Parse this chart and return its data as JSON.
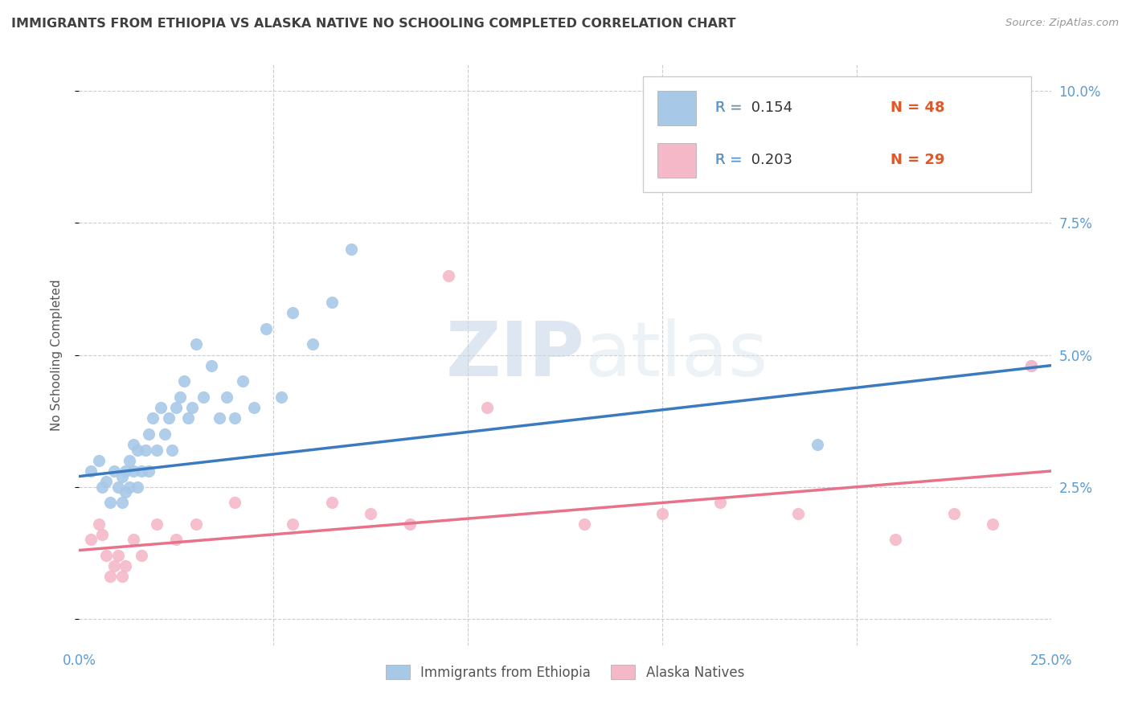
{
  "title": "IMMIGRANTS FROM ETHIOPIA VS ALASKA NATIVE NO SCHOOLING COMPLETED CORRELATION CHART",
  "source": "Source: ZipAtlas.com",
  "ylabel": "No Schooling Completed",
  "xlim": [
    0.0,
    0.25
  ],
  "ylim": [
    -0.005,
    0.105
  ],
  "xticks": [
    0.0,
    0.05,
    0.1,
    0.15,
    0.2,
    0.25
  ],
  "xticklabels": [
    "0.0%",
    "",
    "",
    "",
    "",
    "25.0%"
  ],
  "yticks": [
    0.0,
    0.025,
    0.05,
    0.075,
    0.1
  ],
  "yticklabels": [
    "",
    "2.5%",
    "5.0%",
    "7.5%",
    "10.0%"
  ],
  "blue_color": "#a8c8e8",
  "pink_color": "#f4b8c8",
  "blue_line_color": "#3a7abf",
  "pink_line_color": "#e8728a",
  "legend_R1": "R =  0.154",
  "legend_N1": "N = 48",
  "legend_R2": "R =  0.203",
  "legend_N2": "N = 29",
  "legend_label1": "Immigrants from Ethiopia",
  "legend_label2": "Alaska Natives",
  "watermark_zip": "ZIP",
  "watermark_atlas": "atlas",
  "blue_x": [
    0.003,
    0.005,
    0.006,
    0.007,
    0.008,
    0.009,
    0.01,
    0.011,
    0.011,
    0.012,
    0.012,
    0.013,
    0.013,
    0.014,
    0.014,
    0.015,
    0.015,
    0.016,
    0.017,
    0.018,
    0.018,
    0.019,
    0.02,
    0.021,
    0.022,
    0.023,
    0.024,
    0.025,
    0.026,
    0.027,
    0.028,
    0.029,
    0.03,
    0.032,
    0.034,
    0.036,
    0.038,
    0.04,
    0.042,
    0.045,
    0.048,
    0.052,
    0.055,
    0.06,
    0.065,
    0.07,
    0.19,
    0.245
  ],
  "blue_y": [
    0.028,
    0.03,
    0.025,
    0.026,
    0.022,
    0.028,
    0.025,
    0.022,
    0.027,
    0.024,
    0.028,
    0.025,
    0.03,
    0.028,
    0.033,
    0.025,
    0.032,
    0.028,
    0.032,
    0.028,
    0.035,
    0.038,
    0.032,
    0.04,
    0.035,
    0.038,
    0.032,
    0.04,
    0.042,
    0.045,
    0.038,
    0.04,
    0.052,
    0.042,
    0.048,
    0.038,
    0.042,
    0.038,
    0.045,
    0.04,
    0.055,
    0.042,
    0.058,
    0.052,
    0.06,
    0.07,
    0.033,
    0.048
  ],
  "pink_x": [
    0.003,
    0.005,
    0.006,
    0.007,
    0.008,
    0.009,
    0.01,
    0.011,
    0.012,
    0.014,
    0.016,
    0.02,
    0.025,
    0.03,
    0.04,
    0.055,
    0.065,
    0.075,
    0.085,
    0.095,
    0.105,
    0.13,
    0.15,
    0.165,
    0.185,
    0.21,
    0.225,
    0.235,
    0.245
  ],
  "pink_y": [
    0.015,
    0.018,
    0.016,
    0.012,
    0.008,
    0.01,
    0.012,
    0.008,
    0.01,
    0.015,
    0.012,
    0.018,
    0.015,
    0.018,
    0.022,
    0.018,
    0.022,
    0.02,
    0.018,
    0.065,
    0.04,
    0.018,
    0.02,
    0.022,
    0.02,
    0.015,
    0.02,
    0.018,
    0.048
  ],
  "blue_trend_x": [
    0.0,
    0.25
  ],
  "blue_trend_y": [
    0.027,
    0.048
  ],
  "pink_trend_x": [
    0.0,
    0.25
  ],
  "pink_trend_y": [
    0.013,
    0.028
  ],
  "grid_color": "#cccccc",
  "tick_label_color": "#5b9bd5",
  "title_color": "#404040",
  "source_color": "#999999"
}
